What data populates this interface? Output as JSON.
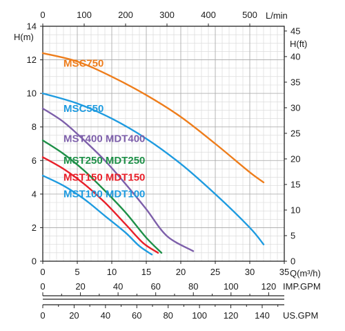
{
  "chart_data": {
    "type": "line",
    "x_axis": {
      "label": "Q(m³/h)",
      "min": 0,
      "max": 35,
      "ticks": [
        0,
        5,
        10,
        15,
        20,
        25,
        30,
        35
      ]
    },
    "top_axis": {
      "label": "L/min",
      "min": 0,
      "max": 583.333,
      "ticks": [
        0,
        100,
        200,
        300,
        400,
        500
      ]
    },
    "imp_axis": {
      "label": "IMP.GPM",
      "min": 0,
      "max": 128.3,
      "ticks": [
        0,
        20,
        40,
        60,
        80,
        100,
        120
      ]
    },
    "us_axis": {
      "label": "US.GPM",
      "min": 0,
      "max": 154.1,
      "ticks": [
        0,
        20,
        40,
        60,
        80,
        100,
        120,
        140
      ]
    },
    "y_left": {
      "label": "H(m)",
      "min": 0,
      "max": 14,
      "ticks": [
        0,
        2,
        4,
        6,
        8,
        10,
        12,
        14
      ]
    },
    "y_right": {
      "label": "H(ft)",
      "min": 0,
      "max": 45.93,
      "ticks": [
        0,
        5,
        10,
        15,
        20,
        25,
        30,
        35,
        40,
        45
      ]
    },
    "grid": true,
    "series": [
      {
        "name": "MSC750",
        "color": "#ee7d1b",
        "label_at": [
          3,
          11.6
        ],
        "points": [
          [
            0,
            12.4
          ],
          [
            5,
            11.9
          ],
          [
            10,
            11.0
          ],
          [
            15,
            9.9
          ],
          [
            20,
            8.6
          ],
          [
            25,
            7.0
          ],
          [
            30,
            5.3
          ],
          [
            32,
            4.7
          ]
        ]
      },
      {
        "name": "MSC550",
        "color": "#1e9be0",
        "label_at": [
          3,
          8.9
        ],
        "points": [
          [
            0,
            10.0
          ],
          [
            5,
            9.4
          ],
          [
            10,
            8.5
          ],
          [
            15,
            7.3
          ],
          [
            20,
            5.8
          ],
          [
            25,
            4.0
          ],
          [
            30,
            2.0
          ],
          [
            32,
            1.0
          ]
        ]
      },
      {
        "name": "MST400  MDT400",
        "color": "#7d5faa",
        "label_at": [
          3,
          7.1
        ],
        "points": [
          [
            0,
            9.1
          ],
          [
            3,
            8.3
          ],
          [
            6,
            7.2
          ],
          [
            9,
            6.0
          ],
          [
            12,
            4.6
          ],
          [
            15,
            3.1
          ],
          [
            18,
            1.5
          ],
          [
            21.8,
            0.6
          ]
        ]
      },
      {
        "name": "MST250  MDT250",
        "color": "#1e9048",
        "label_at": [
          3,
          5.8
        ],
        "points": [
          [
            0,
            7.2
          ],
          [
            3,
            6.4
          ],
          [
            6,
            5.4
          ],
          [
            9,
            4.2
          ],
          [
            12,
            2.9
          ],
          [
            15,
            1.4
          ],
          [
            17.2,
            0.5
          ]
        ]
      },
      {
        "name": "MST150  MDT150",
        "color": "#e8202a",
        "label_at": [
          3,
          4.8
        ],
        "points": [
          [
            0,
            6.2
          ],
          [
            3,
            5.5
          ],
          [
            6,
            4.6
          ],
          [
            9,
            3.5
          ],
          [
            12,
            2.2
          ],
          [
            14.5,
            1.1
          ],
          [
            16.7,
            0.5
          ]
        ]
      },
      {
        "name": "MST100  MDT100",
        "color": "#1e9be0",
        "label_at": [
          3,
          3.8
        ],
        "points": [
          [
            0,
            5.1
          ],
          [
            3,
            4.5
          ],
          [
            6,
            3.7
          ],
          [
            9,
            2.7
          ],
          [
            12,
            1.7
          ],
          [
            14,
            0.9
          ],
          [
            15.8,
            0.4
          ]
        ]
      }
    ]
  }
}
